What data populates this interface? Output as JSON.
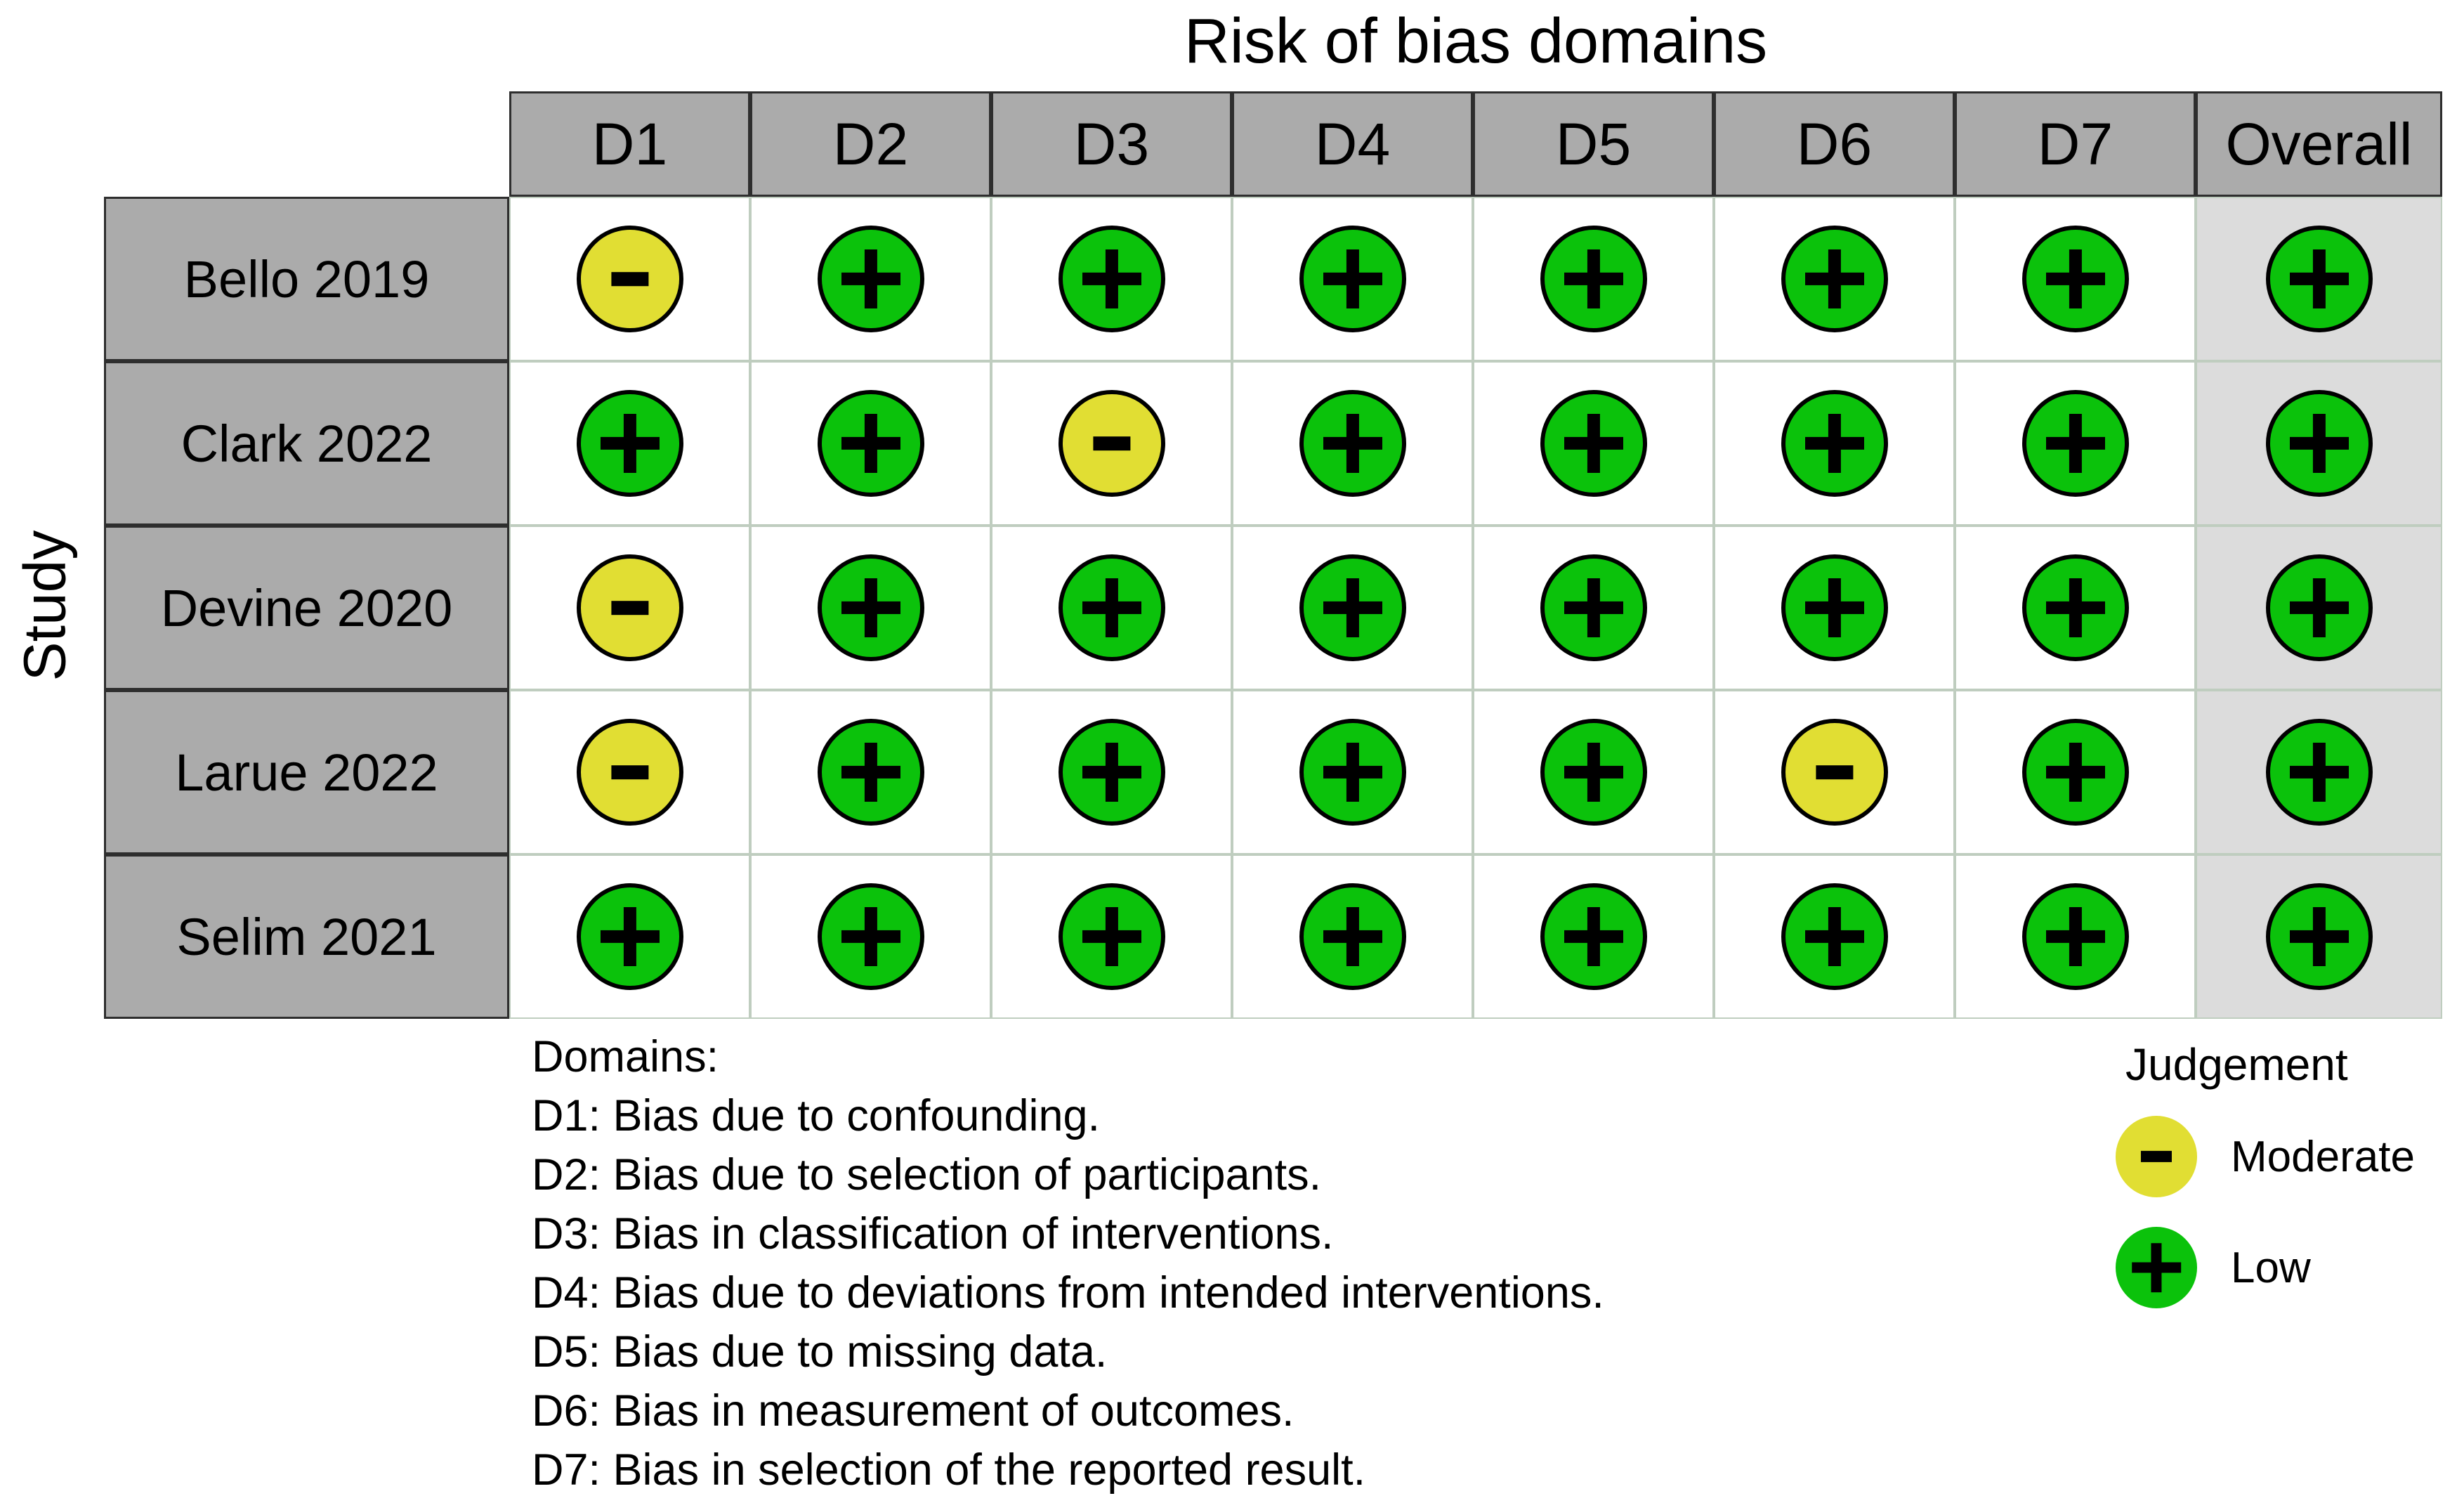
{
  "title": "Risk of bias domains",
  "axis_label": "Study",
  "columns": [
    "D1",
    "D2",
    "D3",
    "D4",
    "D5",
    "D6",
    "D7",
    "Overall"
  ],
  "studies": [
    {
      "name": "Bello 2019",
      "judgements": [
        "moderate",
        "low",
        "low",
        "low",
        "low",
        "low",
        "low",
        "low"
      ]
    },
    {
      "name": "Clark 2022",
      "judgements": [
        "low",
        "low",
        "moderate",
        "low",
        "low",
        "low",
        "low",
        "low"
      ]
    },
    {
      "name": "Devine 2020",
      "judgements": [
        "moderate",
        "low",
        "low",
        "low",
        "low",
        "low",
        "low",
        "low"
      ]
    },
    {
      "name": "Larue 2022",
      "judgements": [
        "moderate",
        "low",
        "low",
        "low",
        "low",
        "moderate",
        "low",
        "low"
      ]
    },
    {
      "name": "Selim 2021",
      "judgements": [
        "low",
        "low",
        "low",
        "low",
        "low",
        "low",
        "low",
        "low"
      ]
    }
  ],
  "judgement_symbols": {
    "low": "+",
    "moderate": "-"
  },
  "colors": {
    "low": "#0BC20B",
    "moderate": "#E1DE33",
    "header_fill": "#ABABAB",
    "header_border": "#2E2E2E",
    "overall_column_bg": "#DCDCDC",
    "grid_line": "#BFCDBF",
    "symbol": "#000000"
  },
  "footnote": {
    "heading": "Domains:",
    "items": [
      "D1: Bias due to confounding.",
      "D2: Bias due to selection of participants.",
      "D3: Bias in classification of interventions.",
      "D4: Bias due to deviations from intended interventions.",
      "D5: Bias due to missing data.",
      "D6: Bias in measurement of outcomes.",
      "D7: Bias in selection of the reported result."
    ]
  },
  "legend": {
    "title": "Judgement",
    "items": [
      {
        "label": "Moderate",
        "judgement": "moderate",
        "symbol": "-"
      },
      {
        "label": "Low",
        "judgement": "low",
        "symbol": "+"
      }
    ]
  },
  "chart_data": {
    "type": "heatmap",
    "title": "Risk of bias domains",
    "x_axis_label": "Risk of bias domains",
    "y_axis_label": "Study",
    "x_categories": [
      "D1",
      "D2",
      "D3",
      "D4",
      "D5",
      "D6",
      "D7",
      "Overall"
    ],
    "y_categories": [
      "Bello 2019",
      "Clark 2022",
      "Devine 2020",
      "Larue 2022",
      "Selim 2021"
    ],
    "values": [
      [
        "Moderate",
        "Low",
        "Low",
        "Low",
        "Low",
        "Low",
        "Low",
        "Low"
      ],
      [
        "Low",
        "Low",
        "Moderate",
        "Low",
        "Low",
        "Low",
        "Low",
        "Low"
      ],
      [
        "Moderate",
        "Low",
        "Low",
        "Low",
        "Low",
        "Low",
        "Low",
        "Low"
      ],
      [
        "Moderate",
        "Low",
        "Low",
        "Low",
        "Low",
        "Moderate",
        "Low",
        "Low"
      ],
      [
        "Low",
        "Low",
        "Low",
        "Low",
        "Low",
        "Low",
        "Low",
        "Low"
      ]
    ],
    "legend": {
      "title": "Judgement",
      "entries": [
        "Moderate",
        "Low"
      ],
      "position": "bottom-right"
    },
    "grid": true
  }
}
